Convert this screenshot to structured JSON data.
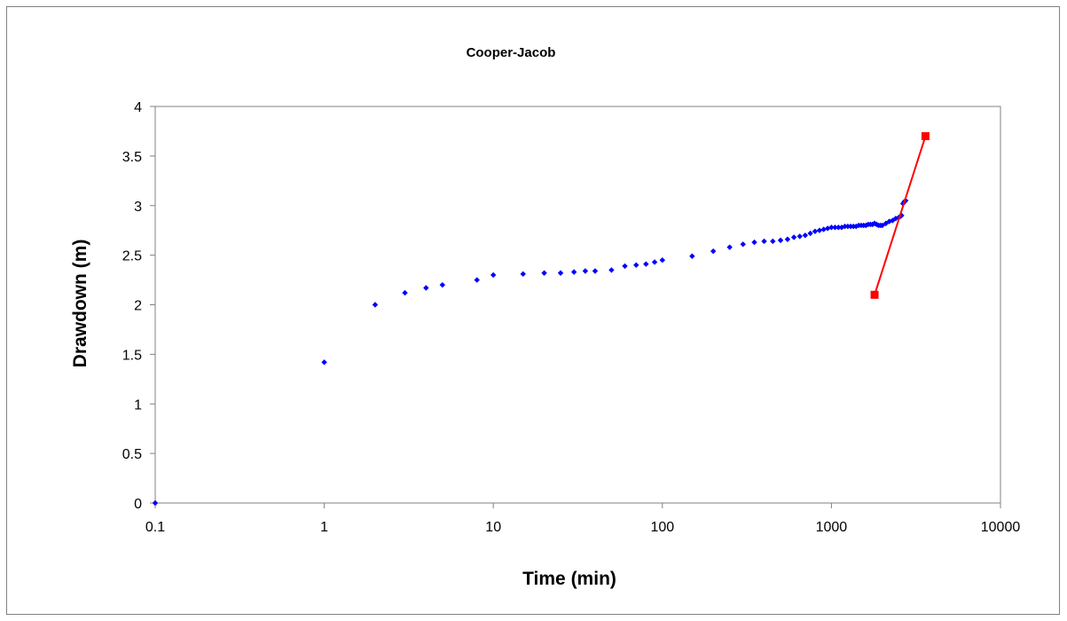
{
  "chart_data": {
    "type": "scatter",
    "title": "Cooper-Jacob",
    "xlabel": "Time (min)",
    "ylabel": "Drawdown (m)",
    "x_scale": "log",
    "xlim": [
      0.1,
      10000
    ],
    "ylim": [
      0,
      4
    ],
    "x_ticks": [
      "0.1",
      "1",
      "10",
      "100",
      "1000",
      "10000"
    ],
    "y_ticks": [
      "0",
      "0.5",
      "1",
      "1.5",
      "2",
      "2.5",
      "3",
      "3.5",
      "4"
    ],
    "grid": false,
    "legend": "none",
    "series": [
      {
        "style": "markers",
        "marker": "diamond",
        "color": "#0000ff",
        "points": [
          [
            0.1,
            0.0
          ],
          [
            1,
            1.42
          ],
          [
            2,
            2.0
          ],
          [
            3,
            2.12
          ],
          [
            4,
            2.17
          ],
          [
            5,
            2.2
          ],
          [
            8,
            2.25
          ],
          [
            10,
            2.3
          ],
          [
            15,
            2.31
          ],
          [
            20,
            2.32
          ],
          [
            25,
            2.32
          ],
          [
            30,
            2.33
          ],
          [
            35,
            2.34
          ],
          [
            40,
            2.34
          ],
          [
            50,
            2.35
          ],
          [
            60,
            2.39
          ],
          [
            70,
            2.4
          ],
          [
            80,
            2.41
          ],
          [
            90,
            2.43
          ],
          [
            100,
            2.45
          ],
          [
            150,
            2.49
          ],
          [
            200,
            2.54
          ],
          [
            250,
            2.58
          ],
          [
            300,
            2.61
          ],
          [
            350,
            2.63
          ],
          [
            400,
            2.64
          ],
          [
            450,
            2.64
          ],
          [
            500,
            2.65
          ],
          [
            550,
            2.66
          ],
          [
            600,
            2.68
          ],
          [
            650,
            2.69
          ],
          [
            700,
            2.7
          ],
          [
            750,
            2.72
          ],
          [
            800,
            2.74
          ],
          [
            850,
            2.75
          ],
          [
            900,
            2.76
          ],
          [
            950,
            2.77
          ],
          [
            1000,
            2.78
          ],
          [
            1050,
            2.78
          ],
          [
            1100,
            2.78
          ],
          [
            1150,
            2.78
          ],
          [
            1200,
            2.79
          ],
          [
            1250,
            2.79
          ],
          [
            1300,
            2.79
          ],
          [
            1350,
            2.79
          ],
          [
            1400,
            2.79
          ],
          [
            1450,
            2.8
          ],
          [
            1500,
            2.8
          ],
          [
            1550,
            2.8
          ],
          [
            1600,
            2.8
          ],
          [
            1650,
            2.81
          ],
          [
            1700,
            2.81
          ],
          [
            1750,
            2.81
          ],
          [
            1800,
            2.82
          ],
          [
            1850,
            2.81
          ],
          [
            1900,
            2.8
          ],
          [
            1950,
            2.8
          ],
          [
            2000,
            2.8
          ],
          [
            2100,
            2.82
          ],
          [
            2200,
            2.84
          ],
          [
            2300,
            2.85
          ],
          [
            2400,
            2.87
          ],
          [
            2500,
            2.88
          ],
          [
            2550,
            2.89
          ],
          [
            2600,
            2.9
          ],
          [
            2650,
            3.02
          ],
          [
            2700,
            3.04
          ],
          [
            2750,
            3.05
          ]
        ]
      },
      {
        "style": "line-markers",
        "marker": "square",
        "color": "#ff0000",
        "points": [
          [
            1800,
            2.1
          ],
          [
            3600,
            3.7
          ]
        ]
      }
    ]
  }
}
